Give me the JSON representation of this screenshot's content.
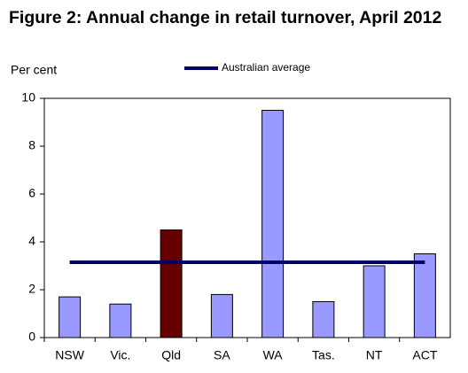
{
  "chart_data": {
    "type": "bar",
    "title": "Figure 2: Annual change in retail turnover, April 2012",
    "y_label": "Per cent",
    "categories": [
      "NSW",
      "Vic.",
      "Qld",
      "SA",
      "WA",
      "Tas.",
      "NT",
      "ACT"
    ],
    "values": [
      1.7,
      1.4,
      4.5,
      1.8,
      9.5,
      1.5,
      3.0,
      3.5
    ],
    "colors": [
      "#9999ff",
      "#9999ff",
      "#660000",
      "#9999ff",
      "#9999ff",
      "#9999ff",
      "#9999ff",
      "#9999ff"
    ],
    "average": {
      "name": "Australian average",
      "value": 3.15,
      "color": "#000066"
    },
    "ylim": [
      0,
      10
    ],
    "yticks": [
      0,
      2,
      4,
      6,
      8,
      10
    ],
    "grid": false
  }
}
